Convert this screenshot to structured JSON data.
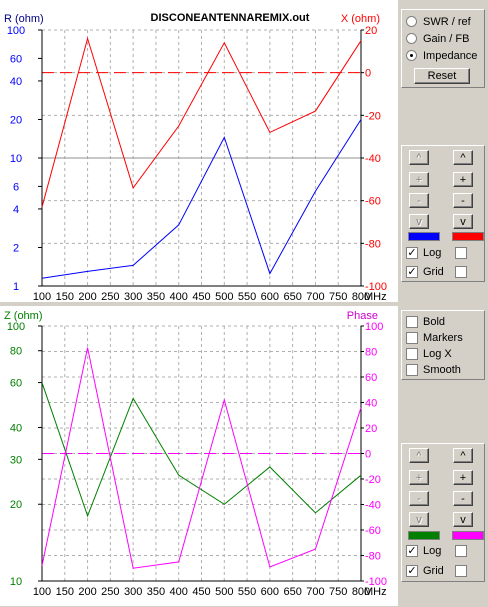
{
  "window": {
    "filename": "DISCONEANTENNAREMIX.out"
  },
  "top_plot": {
    "left_label": "R (ohm)",
    "right_label": "X (ohm)",
    "left_ticks": [
      "100",
      "60",
      "40",
      "20",
      "10",
      "6",
      "4",
      "2",
      "1"
    ],
    "right_ticks": [
      "20",
      "0",
      "-20",
      "-40",
      "-60",
      "-80",
      "-100"
    ],
    "x_ticks": [
      "100",
      "150",
      "200",
      "250",
      "300",
      "350",
      "400",
      "450",
      "500",
      "550",
      "600",
      "650",
      "700",
      "750",
      "800"
    ],
    "x_unit": "MHz",
    "colors": {
      "R": "#0000ff",
      "X": "#ff0000"
    }
  },
  "bottom_plot": {
    "left_label": "Z (ohm)",
    "right_label": "Phase",
    "left_ticks": [
      "100",
      "80",
      "60",
      "40",
      "30",
      "20",
      "10"
    ],
    "right_ticks": [
      "100",
      "80",
      "60",
      "40",
      "20",
      "0",
      "-20",
      "-40",
      "-60",
      "-80",
      "-100"
    ],
    "x_ticks": [
      "100",
      "150",
      "200",
      "250",
      "300",
      "350",
      "400",
      "450",
      "500",
      "550",
      "600",
      "650",
      "700",
      "750",
      "800"
    ],
    "x_unit": "MHz",
    "colors": {
      "Z": "#008000",
      "Phase": "#ff00ff"
    }
  },
  "chart_data": [
    {
      "type": "line",
      "title": "DISCONEANTENNAREMIX.out",
      "xlabel": "MHz",
      "x": [
        100,
        200,
        300,
        400,
        500,
        600,
        700,
        800
      ],
      "xlim": [
        100,
        800
      ],
      "grid": true,
      "series": [
        {
          "name": "R (ohm)",
          "axis": "left",
          "scale": "log",
          "ylim": [
            1,
            100
          ],
          "values": [
            1.15,
            1.3,
            1.45,
            3.0,
            14.5,
            1.25,
            5.5,
            20
          ]
        },
        {
          "name": "X (ohm)",
          "axis": "right",
          "scale": "linear",
          "ylim": [
            -100,
            20
          ],
          "values": [
            -63,
            16,
            -54,
            -25,
            14,
            -28,
            -18,
            15
          ]
        }
      ]
    },
    {
      "type": "line",
      "xlabel": "MHz",
      "x": [
        100,
        200,
        300,
        400,
        500,
        600,
        700,
        800
      ],
      "xlim": [
        100,
        800
      ],
      "grid": true,
      "series": [
        {
          "name": "Z (ohm)",
          "axis": "left",
          "scale": "log",
          "ylim": [
            10,
            100
          ],
          "values": [
            60,
            18,
            52,
            26,
            20,
            28,
            18.5,
            26
          ]
        },
        {
          "name": "Phase",
          "axis": "right",
          "scale": "linear",
          "ylim": [
            -100,
            100
          ],
          "values": [
            -88,
            83,
            -90,
            -85,
            42,
            -89,
            -75,
            36
          ]
        }
      ]
    }
  ],
  "mode_panel": {
    "options": [
      "SWR / ref",
      "Gain / FB",
      "Impedance"
    ],
    "selected": "Impedance",
    "reset_label": "Reset"
  },
  "top_axis_panel": {
    "buttons": [
      "^",
      "+",
      "-",
      "v"
    ],
    "left_color": "#0000ff",
    "right_color": "#ff0000",
    "log_label": "Log",
    "grid_label": "Grid",
    "log_left": true,
    "log_right": false,
    "grid_left": true,
    "grid_right": false
  },
  "options_panel": {
    "items": [
      {
        "label": "Bold",
        "checked": false
      },
      {
        "label": "Markers",
        "checked": false
      },
      {
        "label": "Log X",
        "checked": false
      },
      {
        "label": "Smooth",
        "checked": false
      }
    ]
  },
  "bottom_axis_panel": {
    "buttons": [
      "^",
      "+",
      "-",
      "v"
    ],
    "left_color": "#008000",
    "right_color": "#ff00ff",
    "log_label": "Log",
    "grid_label": "Grid",
    "log_left": true,
    "log_right": false,
    "grid_right": false,
    "grid_left": true
  }
}
